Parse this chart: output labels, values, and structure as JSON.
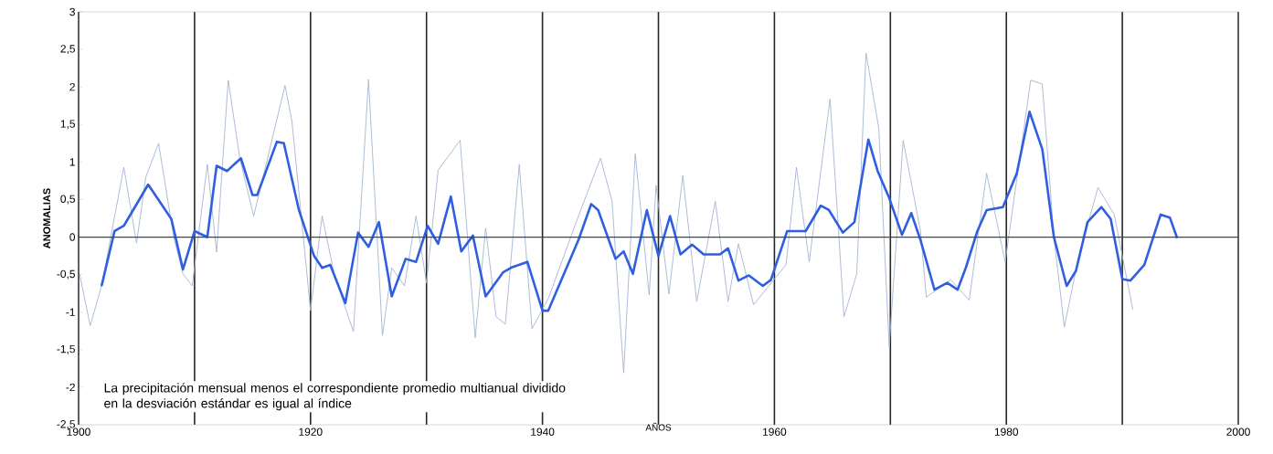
{
  "chart_data": {
    "type": "line",
    "xlabel": "AÑOS",
    "ylabel": "ANOMALIAS",
    "annotations": [
      "La precipitación mensual menos el correspondiente promedio multianual dividido en la desviación estándar es igual al índice"
    ],
    "xlim": [
      1900,
      2000
    ],
    "xticks": [
      1900,
      {
        "value": 1910,
        "label": null
      },
      1920,
      {
        "value": 1930,
        "label": null
      },
      1940,
      {
        "value": 1950,
        "label": null
      },
      1960,
      {
        "value": 1970,
        "label": null
      },
      1980,
      {
        "value": 1990,
        "label": null
      },
      2000
    ],
    "ylim": [
      -2.5,
      3
    ],
    "yticks": [
      {
        "value": -2.5,
        "label": "-2,5"
      },
      -2,
      {
        "value": -1.5,
        "label": "-1,5"
      },
      -1,
      {
        "value": -0.5,
        "label": "-0,5"
      },
      0,
      {
        "value": 0.5,
        "label": "0,5"
      },
      1,
      {
        "value": 1.5,
        "label": "1,5"
      },
      2,
      {
        "value": 2.5,
        "label": "2,5"
      },
      3
    ],
    "grid": "x",
    "marker": "none",
    "line_style": "solid",
    "ref_lines": [
      {
        "axis": "y",
        "value": 0,
        "color": "#3a4a48"
      }
    ],
    "series": [
      {
        "color": "#a3b4d6",
        "x": [
          1900.1,
          1901.0,
          1902.0,
          1903.9,
          1905.0,
          1905.8,
          1906.9,
          1908.2,
          1909.0,
          1909.8,
          1911.1,
          1911.9,
          1912.9,
          1913.9,
          1915.1,
          1917.8,
          1918.4,
          1920.0,
          1921.0,
          1922.1,
          1923.7,
          1925.0,
          1926.2,
          1927.0,
          1928.1,
          1929.1,
          1930.0,
          1931.0,
          1932.9,
          1934.2,
          1935.1,
          1936.0,
          1936.8,
          1938.0,
          1939.1,
          1940.5,
          1943.1,
          1945.0,
          1946.0,
          1947.0,
          1948.0,
          1949.2,
          1949.8,
          1950.9,
          1952.1,
          1953.3,
          1954.9,
          1956.0,
          1956.9,
          1958.2,
          1961.0,
          1961.9,
          1963.0,
          1964.8,
          1966.0,
          1967.1,
          1967.9,
          1969.0,
          1969.9,
          1971.1,
          1972.6,
          1973.1,
          1975.2,
          1976.8,
          1978.3,
          1979.9,
          1982.1,
          1983.1,
          1984.1,
          1985.0,
          1986.2,
          1987.9,
          1989.3,
          1990.9
        ],
        "values": [
          -0.5,
          -1.18,
          -0.64,
          0.93,
          -0.08,
          0.8,
          1.25,
          0.0,
          -0.49,
          -0.65,
          0.97,
          -0.2,
          2.09,
          1.05,
          0.28,
          2.02,
          1.54,
          -0.98,
          0.28,
          -0.53,
          -1.26,
          2.1,
          -1.31,
          -0.41,
          -0.65,
          0.28,
          -0.61,
          0.89,
          1.29,
          -1.34,
          0.12,
          -1.06,
          -1.16,
          0.97,
          -1.22,
          -0.82,
          0.28,
          1.05,
          0.48,
          -1.81,
          1.11,
          -0.77,
          0.69,
          -0.76,
          0.82,
          -0.86,
          0.48,
          -0.86,
          -0.09,
          -0.9,
          -0.37,
          0.93,
          -0.33,
          1.84,
          -1.06,
          -0.49,
          2.45,
          1.45,
          -1.46,
          1.29,
          0.08,
          -0.8,
          -0.57,
          -0.84,
          0.85,
          -0.33,
          2.09,
          2.04,
          0.0,
          -1.2,
          -0.29,
          0.66,
          0.3,
          -0.96
        ]
      },
      {
        "color": "#2f5fe0",
        "x": [
          1902.0,
          1903.1,
          1903.9,
          1906.0,
          1908.0,
          1909.0,
          1910.0,
          1911.1,
          1911.9,
          1912.8,
          1914.0,
          1915.0,
          1915.4,
          1917.1,
          1917.7,
          1919.0,
          1920.3,
          1921.0,
          1921.7,
          1923.0,
          1924.1,
          1925.0,
          1925.9,
          1927.0,
          1928.2,
          1929.1,
          1930.1,
          1931.0,
          1932.1,
          1933.0,
          1934.0,
          1935.1,
          1936.6,
          1937.4,
          1938.7,
          1940.0,
          1940.5,
          1943.1,
          1944.2,
          1944.8,
          1946.3,
          1947.0,
          1947.8,
          1949.0,
          1950.0,
          1951.0,
          1951.9,
          1952.9,
          1953.9,
          1955.3,
          1956.0,
          1956.9,
          1957.8,
          1959.0,
          1959.7,
          1961.1,
          1962.7,
          1964.0,
          1964.7,
          1965.9,
          1966.9,
          1968.1,
          1968.9,
          1969.9,
          1971.0,
          1971.8,
          1972.6,
          1973.8,
          1974.9,
          1975.8,
          1976.5,
          1977.5,
          1978.3,
          1979.7,
          1980.9,
          1982.0,
          1983.1,
          1984.1,
          1985.2,
          1986.0,
          1987.0,
          1988.2,
          1989.0,
          1990.0,
          1990.7,
          1991.9,
          1993.3,
          1994.1,
          1994.7
        ],
        "values": [
          -0.64,
          0.08,
          0.15,
          0.7,
          0.24,
          -0.43,
          0.08,
          0.0,
          0.95,
          0.88,
          1.05,
          0.56,
          0.56,
          1.27,
          1.25,
          0.36,
          -0.25,
          -0.41,
          -0.37,
          -0.88,
          0.06,
          -0.13,
          0.2,
          -0.79,
          -0.29,
          -0.33,
          0.15,
          -0.09,
          0.54,
          -0.19,
          0.02,
          -0.79,
          -0.47,
          -0.4,
          -0.33,
          -0.98,
          -0.98,
          -0.04,
          0.44,
          0.36,
          -0.29,
          -0.19,
          -0.49,
          0.36,
          -0.25,
          0.28,
          -0.23,
          -0.1,
          -0.23,
          -0.23,
          -0.15,
          -0.58,
          -0.51,
          -0.65,
          -0.57,
          0.08,
          0.08,
          0.42,
          0.36,
          0.06,
          0.2,
          1.3,
          0.88,
          0.52,
          0.03,
          0.32,
          -0.04,
          -0.7,
          -0.61,
          -0.7,
          -0.41,
          0.08,
          0.36,
          0.4,
          0.85,
          1.67,
          1.17,
          0.0,
          -0.65,
          -0.45,
          0.2,
          0.4,
          0.24,
          -0.56,
          -0.58,
          -0.37,
          0.3,
          0.26,
          0.0
        ]
      }
    ]
  }
}
